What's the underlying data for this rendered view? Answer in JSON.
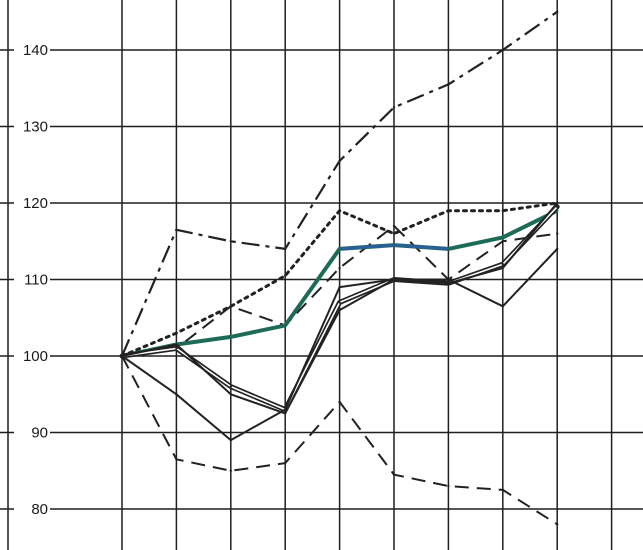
{
  "chart_data": {
    "type": "line",
    "title": "",
    "xlabel": "",
    "ylabel": "",
    "x": [
      0,
      1,
      2,
      3,
      4,
      5,
      6,
      7,
      8
    ],
    "ylim": [
      77,
      149
    ],
    "yticks": [
      80,
      90,
      100,
      110,
      120,
      130,
      140
    ],
    "ytick_labels": [
      "80",
      "90",
      "100",
      "110",
      "120",
      "130",
      "140"
    ],
    "grid": true,
    "legend": "none",
    "series": [
      {
        "values": [
          100,
          116.5,
          115,
          114,
          125.5,
          132.5,
          135.5,
          140,
          145
        ],
        "style": "dashdot",
        "color": "#222222",
        "width": 2.2
      },
      {
        "values": [
          100,
          103,
          106.5,
          110.5,
          119,
          116,
          119,
          119,
          120
        ],
        "style": "dotted",
        "color": "#222222",
        "width": 3
      },
      {
        "values": [
          100,
          101,
          106.5,
          104,
          111.5,
          117,
          110,
          115,
          116
        ],
        "style": "dashed",
        "color": "#222222",
        "width": 2
      },
      {
        "values": [
          100,
          101.5,
          102.5,
          104,
          114,
          114.5,
          114,
          115.5,
          119
        ],
        "style": "solid",
        "color": "#1d6b57",
        "width": 4,
        "highlight_color": "#2a5f9c"
      },
      {
        "values": [
          100,
          101,
          96,
          93,
          107,
          110,
          109.5,
          112,
          119.5
        ],
        "style": "double",
        "color": "#222222",
        "width": 2
      },
      {
        "values": [
          100,
          101.5,
          95,
          92.5,
          106,
          110,
          109.5,
          111.5,
          120
        ],
        "style": "solid",
        "color": "#222222",
        "width": 2
      },
      {
        "values": [
          100,
          95,
          89,
          93,
          109,
          110,
          110,
          106.5,
          114
        ],
        "style": "solid",
        "color": "#222222",
        "width": 2
      },
      {
        "values": [
          100,
          86.5,
          85,
          86,
          94,
          84.5,
          83,
          82.5,
          78
        ],
        "style": "dashed",
        "color": "#222222",
        "width": 2
      }
    ]
  }
}
